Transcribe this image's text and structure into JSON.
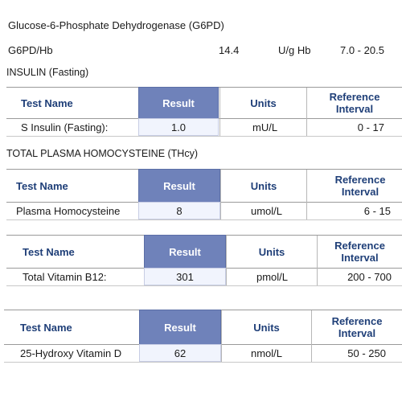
{
  "g6pd": {
    "title": "Glucose-6-Phosphate Dehydrogenase (G6PD)",
    "row": {
      "name": "G6PD/Hb",
      "result": "14.4",
      "units": "U/g Hb",
      "reference": "7.0 - 20.5"
    }
  },
  "insulin": {
    "title": "INSULIN (Fasting)",
    "header": {
      "test": "Test Name",
      "result": "Result",
      "units": "Units",
      "ref_line1": "Reference",
      "ref_line2": "Interval"
    },
    "row": {
      "name": "S Insulin (Fasting):",
      "result": "1.0",
      "units": "mU/L",
      "reference": "0 - 17"
    }
  },
  "homocysteine": {
    "title": "TOTAL PLASMA HOMOCYSTEINE (THcy)",
    "header": {
      "test": "Test Name",
      "result": "Result",
      "units": "Units",
      "ref_line1": "Reference",
      "ref_line2": "Interval"
    },
    "row": {
      "name": "Plasma Homocysteine",
      "result": "8",
      "units": "umol/L",
      "reference": "6 - 15"
    }
  },
  "b12": {
    "header": {
      "test": "Test Name",
      "result": "Result",
      "units": "Units",
      "ref_line1": "Reference",
      "ref_line2": "Interval"
    },
    "row": {
      "name": "Total Vitamin B12:",
      "result": "301",
      "units": "pmol/L",
      "reference": "200 - 700"
    }
  },
  "vitd": {
    "header": {
      "test": "Test Name",
      "result": "Result",
      "units": "Units",
      "ref_line1": "Reference",
      "ref_line2": "Interval"
    },
    "row": {
      "name": "25-Hydroxy Vitamin D",
      "result": "62",
      "units": "nmol/L",
      "reference": "50 - 250"
    }
  }
}
